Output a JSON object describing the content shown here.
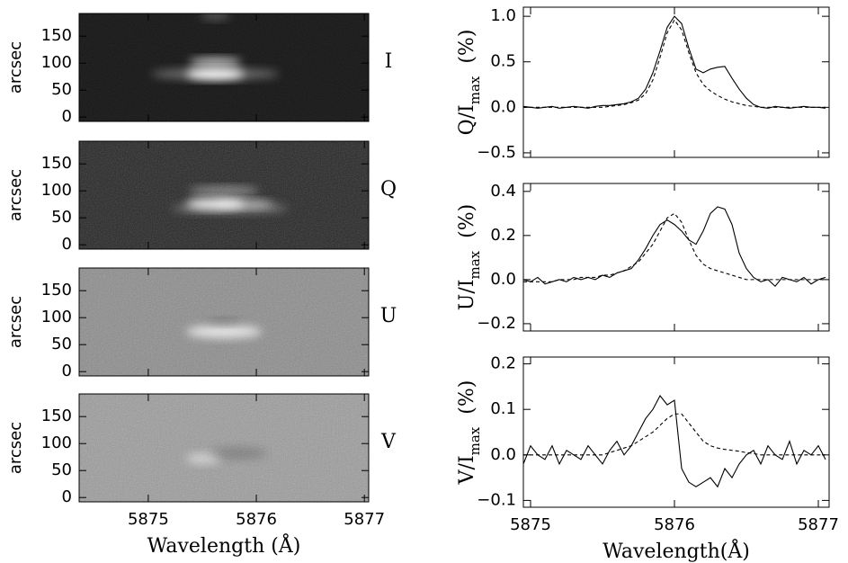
{
  "chart_data": [
    {
      "type": "image",
      "label": "I",
      "y_label": "arcsec",
      "background": "#161616",
      "xlim": [
        5874.36,
        5877.04
      ],
      "xticks": [
        5875,
        5876,
        5877
      ],
      "ylim": [
        -8,
        192
      ],
      "yticks": [
        0,
        50,
        100,
        150
      ]
    },
    {
      "type": "image",
      "label": "Q",
      "y_label": "arcsec",
      "background": "#242424",
      "xlim": [
        5874.36,
        5877.04
      ],
      "xticks": [
        5875,
        5876,
        5877
      ],
      "ylim": [
        -8,
        192
      ],
      "yticks": [
        0,
        50,
        100,
        150
      ]
    },
    {
      "type": "image",
      "label": "U",
      "y_label": "arcsec",
      "background": "#8a8a8a",
      "xlim": [
        5874.36,
        5877.04
      ],
      "xticks": [
        5875,
        5876,
        5877
      ],
      "ylim": [
        -8,
        192
      ],
      "yticks": [
        0,
        50,
        100,
        150
      ]
    },
    {
      "type": "image",
      "label": "V",
      "y_label": "arcsec",
      "background": "#9a9a9a",
      "xlim": [
        5874.36,
        5877.04
      ],
      "xticks": [
        5875,
        5876,
        5877
      ],
      "ylim": [
        -8,
        192
      ],
      "yticks": [
        0,
        50,
        100,
        150
      ],
      "x_label": "Wavelength (Å)",
      "xtick_labels": true
    },
    {
      "type": "line",
      "y_label": "Q/I",
      "y_label_sub": "max",
      "y_label_unit": "(%)",
      "xlim": [
        5874.95,
        5877.075
      ],
      "xticks": [
        5875,
        5876,
        5877
      ],
      "ylim": [
        -0.55,
        1.1
      ],
      "yticks": [
        {
          "value": -0.5,
          "label": "−0.5"
        },
        {
          "value": 0,
          "label": "0.0"
        },
        0.5,
        {
          "value": 1,
          "label": "1.0"
        }
      ],
      "x": [
        5874.95,
        5875,
        5875.05,
        5875.1,
        5875.15,
        5875.2,
        5875.25,
        5875.3,
        5875.35,
        5875.4,
        5875.45,
        5875.5,
        5875.55,
        5875.6,
        5875.65,
        5875.7,
        5875.75,
        5875.8,
        5875.85,
        5875.9,
        5875.95,
        5876,
        5876.05,
        5876.1,
        5876.15,
        5876.2,
        5876.25,
        5876.3,
        5876.35,
        5876.4,
        5876.45,
        5876.5,
        5876.55,
        5876.6,
        5876.65,
        5876.7,
        5876.75,
        5876.8,
        5876.85,
        5876.9,
        5876.95,
        5877,
        5877.05
      ],
      "series": [
        {
          "color": "#000000",
          "style": "solid",
          "values": [
            0.01,
            0.0,
            -0.01,
            0.0,
            0.01,
            -0.01,
            0.0,
            0.01,
            0.0,
            -0.01,
            0.01,
            0.02,
            0.02,
            0.03,
            0.04,
            0.06,
            0.1,
            0.2,
            0.38,
            0.62,
            0.88,
            1.0,
            0.92,
            0.65,
            0.42,
            0.38,
            0.42,
            0.44,
            0.45,
            0.32,
            0.2,
            0.1,
            0.03,
            0.0,
            -0.01,
            0.01,
            0.0,
            -0.01,
            0.0,
            0.01,
            0.0,
            0.0,
            -0.01
          ]
        },
        {
          "color": "#000000",
          "style": "dashed",
          "values": [
            0,
            0,
            0,
            0,
            0,
            0,
            0,
            0,
            0,
            0,
            0,
            0,
            0.01,
            0.02,
            0.03,
            0.05,
            0.08,
            0.15,
            0.3,
            0.55,
            0.82,
            0.96,
            0.85,
            0.6,
            0.38,
            0.25,
            0.18,
            0.13,
            0.09,
            0.06,
            0.04,
            0.02,
            0.01,
            0,
            0,
            0,
            0,
            0,
            0,
            0,
            0,
            0,
            0
          ]
        }
      ]
    },
    {
      "type": "line",
      "y_label": "U/I",
      "y_label_sub": "max",
      "y_label_unit": "(%)",
      "xlim": [
        5874.95,
        5877.075
      ],
      "xticks": [
        5875,
        5876,
        5877
      ],
      "ylim": [
        -0.233,
        0.436
      ],
      "yticks": [
        {
          "value": -0.2,
          "label": "−0.2"
        },
        {
          "value": 0,
          "label": "0.0"
        },
        0.2,
        0.4
      ],
      "x": [
        5874.95,
        5875,
        5875.05,
        5875.1,
        5875.15,
        5875.2,
        5875.25,
        5875.3,
        5875.35,
        5875.4,
        5875.45,
        5875.5,
        5875.55,
        5875.6,
        5875.65,
        5875.7,
        5875.75,
        5875.8,
        5875.85,
        5875.9,
        5875.95,
        5876,
        5876.05,
        5876.1,
        5876.15,
        5876.2,
        5876.25,
        5876.3,
        5876.35,
        5876.4,
        5876.45,
        5876.5,
        5876.55,
        5876.6,
        5876.65,
        5876.7,
        5876.75,
        5876.8,
        5876.85,
        5876.9,
        5876.95,
        5877,
        5877.05
      ],
      "series": [
        {
          "color": "#000000",
          "style": "solid",
          "values": [
            0.0,
            -0.01,
            0.01,
            -0.02,
            -0.01,
            0.0,
            -0.01,
            0.01,
            0.0,
            0.01,
            0.0,
            0.02,
            0.01,
            0.03,
            0.04,
            0.05,
            0.09,
            0.14,
            0.2,
            0.25,
            0.27,
            0.25,
            0.22,
            0.18,
            0.16,
            0.22,
            0.3,
            0.33,
            0.32,
            0.25,
            0.12,
            0.05,
            0.01,
            -0.01,
            0.0,
            -0.03,
            0.01,
            0.0,
            -0.01,
            0.01,
            -0.02,
            0.0,
            0.01
          ]
        },
        {
          "color": "#000000",
          "style": "dashed",
          "values": [
            -0.01,
            -0.01,
            -0.01,
            -0.01,
            -0.01,
            0,
            0,
            0,
            0.01,
            0.01,
            0.01,
            0.02,
            0.02,
            0.03,
            0.04,
            0.06,
            0.08,
            0.12,
            0.16,
            0.22,
            0.28,
            0.3,
            0.26,
            0.18,
            0.11,
            0.07,
            0.05,
            0.04,
            0.03,
            0.02,
            0.01,
            0,
            0,
            0,
            0,
            0,
            0,
            0,
            0,
            0,
            0,
            0,
            0
          ]
        }
      ]
    },
    {
      "type": "line",
      "y_label": "V/I",
      "y_label_sub": "max",
      "y_label_unit": "(%)",
      "x_label": "Wavelength(Å)",
      "xtick_labels": true,
      "xlim": [
        5874.95,
        5877.075
      ],
      "xticks": [
        5875,
        5876,
        5877
      ],
      "ylim": [
        -0.115,
        0.215
      ],
      "yticks": [
        {
          "value": -0.1,
          "label": "−0.1"
        },
        {
          "value": 0,
          "label": "0.0"
        },
        0.1,
        0.2
      ],
      "x": [
        5874.95,
        5875,
        5875.05,
        5875.1,
        5875.15,
        5875.2,
        5875.25,
        5875.3,
        5875.35,
        5875.4,
        5875.45,
        5875.5,
        5875.55,
        5875.6,
        5875.65,
        5875.7,
        5875.75,
        5875.8,
        5875.85,
        5875.9,
        5875.95,
        5876,
        5876.05,
        5876.1,
        5876.15,
        5876.2,
        5876.25,
        5876.3,
        5876.35,
        5876.4,
        5876.45,
        5876.5,
        5876.55,
        5876.6,
        5876.65,
        5876.7,
        5876.75,
        5876.8,
        5876.85,
        5876.9,
        5876.95,
        5877,
        5877.05
      ],
      "series": [
        {
          "color": "#000000",
          "style": "solid",
          "values": [
            -0.02,
            0.02,
            0.0,
            -0.01,
            0.02,
            -0.02,
            0.01,
            0.0,
            -0.01,
            0.02,
            0.0,
            -0.02,
            0.01,
            0.03,
            0.0,
            0.02,
            0.05,
            0.08,
            0.1,
            0.13,
            0.11,
            0.12,
            -0.03,
            -0.06,
            -0.07,
            -0.06,
            -0.05,
            -0.07,
            -0.03,
            -0.05,
            -0.02,
            0.0,
            0.01,
            -0.02,
            0.02,
            0.0,
            -0.01,
            0.03,
            -0.02,
            0.01,
            0.0,
            0.02,
            -0.01
          ]
        },
        {
          "color": "#000000",
          "style": "dashed",
          "values": [
            0,
            0,
            0,
            0,
            0,
            0,
            0,
            0,
            0,
            0,
            0,
            0,
            0.005,
            0.01,
            0.015,
            0.02,
            0.03,
            0.04,
            0.05,
            0.065,
            0.08,
            0.09,
            0.09,
            0.07,
            0.05,
            0.03,
            0.02,
            0.015,
            0.012,
            0.01,
            0.008,
            0.005,
            0.003,
            0,
            0,
            0,
            0,
            0,
            0,
            0,
            0,
            0,
            0
          ]
        }
      ]
    }
  ]
}
